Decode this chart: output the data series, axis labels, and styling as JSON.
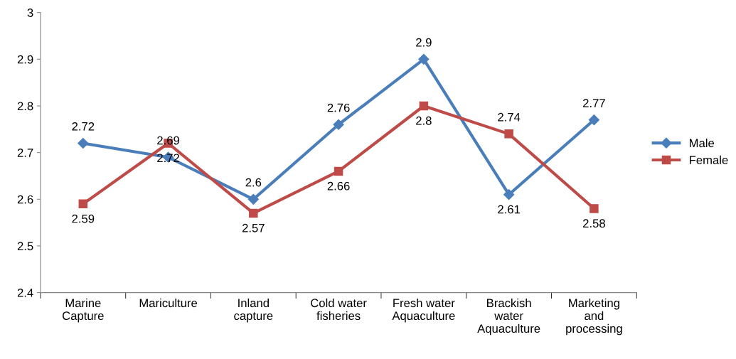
{
  "chart_data": {
    "type": "line",
    "categories": [
      "Marine\nCapture",
      "Mariculture",
      "Inland\ncapture",
      "Cold water\nfisheries",
      "Fresh water\nAquaculture",
      "Brackish\nwater\nAquaculture",
      "Marketing\nand\nprocessing"
    ],
    "series": [
      {
        "name": "Male",
        "color": "#4a7ebb",
        "marker": "diamond",
        "values": [
          2.72,
          2.69,
          2.6,
          2.76,
          2.9,
          2.61,
          2.77
        ]
      },
      {
        "name": "Female",
        "color": "#be4b48",
        "marker": "square",
        "values": [
          2.59,
          2.72,
          2.57,
          2.66,
          2.8,
          2.74,
          2.58
        ]
      }
    ],
    "ylim": [
      2.4,
      3
    ],
    "yticks": [
      2.4,
      2.5,
      2.6,
      2.7,
      2.8,
      2.9,
      3
    ],
    "grid": false,
    "legend": "right",
    "data_labels": true
  }
}
